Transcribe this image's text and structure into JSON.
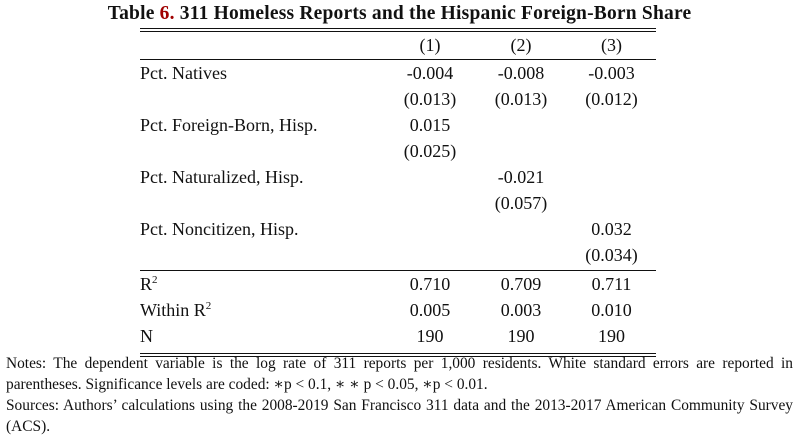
{
  "title": {
    "prefix": "Table",
    "number": "6.",
    "text": "311 Homeless Reports and the Hispanic Foreign-Born Share"
  },
  "columns": [
    "(1)",
    "(2)",
    "(3)"
  ],
  "rows": [
    {
      "label": "Pct. Natives",
      "values": [
        "-0.004",
        "-0.008",
        "-0.003"
      ]
    },
    {
      "label": "",
      "values": [
        "(0.013)",
        "(0.013)",
        "(0.012)"
      ]
    },
    {
      "label": "Pct. Foreign-Born, Hisp.",
      "values": [
        "0.015",
        "",
        ""
      ]
    },
    {
      "label": "",
      "values": [
        "(0.025)",
        "",
        ""
      ]
    },
    {
      "label": "Pct. Naturalized, Hisp.",
      "values": [
        "",
        "-0.021",
        ""
      ]
    },
    {
      "label": "",
      "values": [
        "",
        "(0.057)",
        ""
      ]
    },
    {
      "label": "Pct. Noncitizen, Hisp.",
      "values": [
        "",
        "",
        "0.032"
      ]
    },
    {
      "label": "",
      "values": [
        "",
        "",
        "(0.034)"
      ]
    }
  ],
  "stats": [
    {
      "label": "R",
      "sup": "2",
      "values": [
        "0.710",
        "0.709",
        "0.711"
      ]
    },
    {
      "label": "Within R",
      "sup": "2",
      "values": [
        "0.005",
        "0.003",
        "0.010"
      ]
    },
    {
      "label": "N",
      "sup": "",
      "values": [
        "190",
        "190",
        "190"
      ]
    }
  ],
  "notes": [
    "Notes: The dependent variable is the log rate of 311 reports per 1,000 residents. White standard errors are reported in parentheses. Significance levels are coded: ∗p < 0.1, ∗ ∗ p < 0.05, ∗p < 0.01.",
    "Sources: Authors’ calculations using the 2008-2019 San Francisco 311 data and the 2013-2017 American Community Survey (ACS)."
  ]
}
